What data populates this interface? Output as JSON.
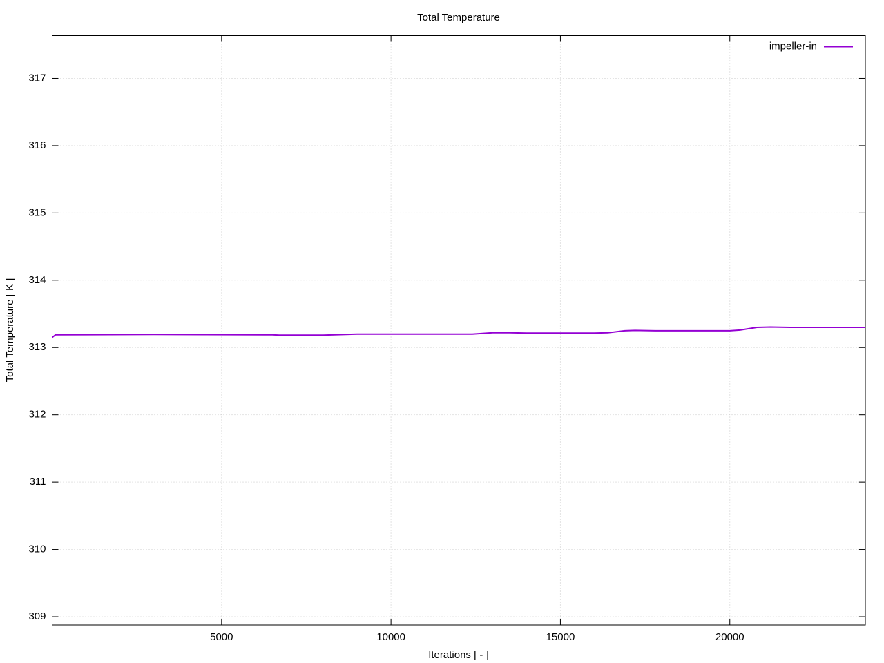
{
  "chart_data": {
    "type": "line",
    "title": "Total Temperature",
    "x_label": "Iterations [ - ]",
    "y_label": "Total Temperature [ K ]",
    "x": [
      0,
      100,
      3000,
      6500,
      6700,
      8000,
      9000,
      12400,
      13000,
      13500,
      14000,
      16000,
      16400,
      16900,
      17200,
      17800,
      20000,
      20300,
      20800,
      21200,
      21800,
      24000
    ],
    "series": [
      {
        "name": "impeller-in",
        "color": "#9400d3",
        "values": [
          313.15,
          313.19,
          313.195,
          313.19,
          313.185,
          313.185,
          313.2,
          313.2,
          313.22,
          313.22,
          313.215,
          313.215,
          313.22,
          313.25,
          313.255,
          313.25,
          313.25,
          313.26,
          313.3,
          313.305,
          313.3,
          313.3
        ]
      }
    ],
    "xlim": [
      0,
      24000
    ],
    "ylim": [
      308.877,
      317.636
    ],
    "xticks": [
      5000,
      10000,
      15000,
      20000
    ],
    "yticks": [
      309,
      310,
      311,
      312,
      313,
      314,
      315,
      316,
      317
    ],
    "grid": true,
    "legend_position": "top-right"
  }
}
